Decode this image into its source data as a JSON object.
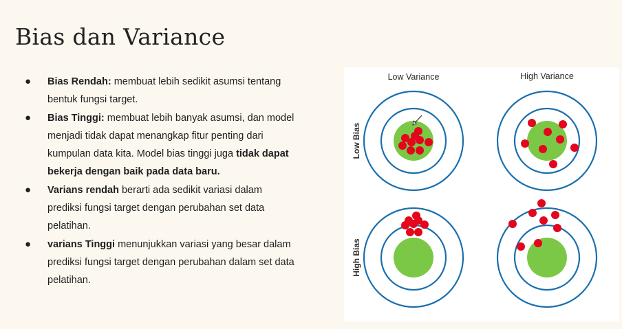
{
  "slide": {
    "title": "Bias dan Variance",
    "bullets": [
      {
        "bold": "Bias Rendah:",
        "text": " membuat lebih sedikit asumsi tentang bentuk fungsi target.",
        "bold2": "",
        "text2": ""
      },
      {
        "bold": "Bias Tinggi:",
        "text": " membuat lebih banyak asumsi, dan model menjadi tidak dapat menangkap fitur penting dari kumpulan data kita. Model bias tinggi juga ",
        "bold2": "tidak dapat bekerja dengan baik pada data baru.",
        "text2": ""
      },
      {
        "bold": "Varians rendah",
        "text": " berarti ada sedikit variasi dalam prediksi fungsi target dengan perubahan set data pelatihan.",
        "bold2": "",
        "text2": ""
      },
      {
        "bold": "varians Tinggi",
        "text": " menunjukkan variasi yang besar dalam prediksi fungsi target dengan perubahan dalam set data pelatihan.",
        "bold2": "",
        "text2": ""
      }
    ]
  },
  "diagram": {
    "columns": [
      "Low Variance",
      "High Variance"
    ],
    "rows": [
      "Low Bias",
      "High Bias"
    ],
    "colors": {
      "ring": "#1a6fae",
      "bullseye": "#7bc846",
      "hit": "#e3061d",
      "background": "#ffffff"
    }
  }
}
